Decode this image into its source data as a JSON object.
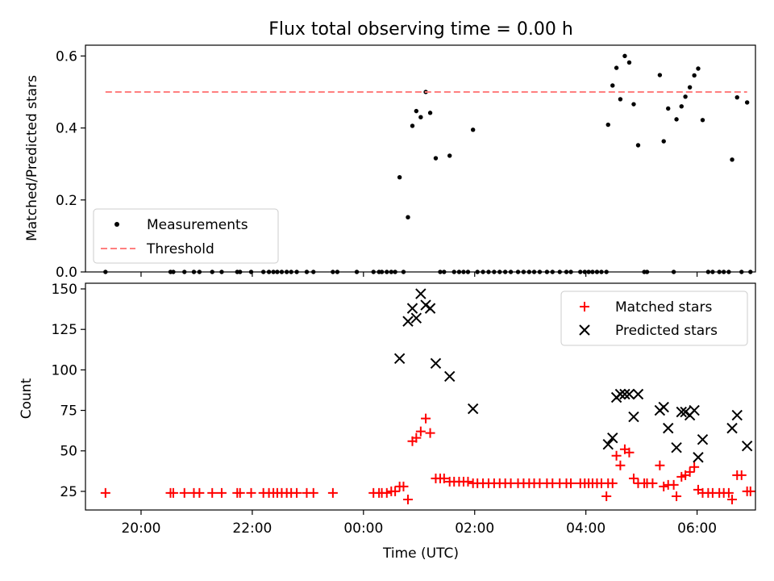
{
  "chart_data": [
    {
      "type": "scatter",
      "title": "Flux total observing time = 0.00 h",
      "ylabel": "Matched/Predicted stars",
      "xlabel": "",
      "ylim": [
        0,
        0.63
      ],
      "yticks": [
        0.0,
        0.2,
        0.4,
        0.6
      ],
      "ytick_labels": [
        "0.0",
        "0.2",
        "0.4",
        "0.6"
      ],
      "x_unit": "hours since 2000-01-01 00:00 UTC",
      "xlim": [
        19.0,
        31.05
      ],
      "legend_position": "lower-left",
      "series": [
        {
          "name": "Measurements",
          "marker": "dot",
          "color": "#000000",
          "points": [
            [
              19.36,
              0
            ],
            [
              20.53,
              0
            ],
            [
              20.58,
              0
            ],
            [
              20.78,
              0
            ],
            [
              20.95,
              0
            ],
            [
              21.05,
              0
            ],
            [
              21.28,
              0
            ],
            [
              21.45,
              0
            ],
            [
              21.73,
              0
            ],
            [
              21.78,
              0
            ],
            [
              21.98,
              0
            ],
            [
              22.2,
              0
            ],
            [
              22.3,
              0
            ],
            [
              22.38,
              0
            ],
            [
              22.45,
              0
            ],
            [
              22.53,
              0
            ],
            [
              22.62,
              0
            ],
            [
              22.7,
              0
            ],
            [
              22.8,
              0
            ],
            [
              22.98,
              0
            ],
            [
              23.1,
              0
            ],
            [
              23.45,
              0
            ],
            [
              23.53,
              0
            ],
            [
              23.88,
              0
            ],
            [
              24.18,
              0
            ],
            [
              24.28,
              0
            ],
            [
              24.33,
              0
            ],
            [
              24.42,
              0
            ],
            [
              24.5,
              0
            ],
            [
              24.57,
              0
            ],
            [
              24.65,
              0.263
            ],
            [
              24.72,
              0
            ],
            [
              24.8,
              0.152
            ],
            [
              24.88,
              0.406
            ],
            [
              24.95,
              0.447
            ],
            [
              25.03,
              0.43
            ],
            [
              25.12,
              0.5
            ],
            [
              25.2,
              0.442
            ],
            [
              25.3,
              0.316
            ],
            [
              25.38,
              0
            ],
            [
              25.45,
              0
            ],
            [
              25.55,
              0.323
            ],
            [
              25.63,
              0
            ],
            [
              25.72,
              0
            ],
            [
              25.8,
              0
            ],
            [
              25.88,
              0
            ],
            [
              25.97,
              0.395
            ],
            [
              26.05,
              0
            ],
            [
              26.15,
              0
            ],
            [
              26.25,
              0
            ],
            [
              26.35,
              0
            ],
            [
              26.45,
              0
            ],
            [
              26.55,
              0
            ],
            [
              26.65,
              0
            ],
            [
              26.78,
              0
            ],
            [
              26.88,
              0
            ],
            [
              26.98,
              0
            ],
            [
              27.07,
              0
            ],
            [
              27.17,
              0
            ],
            [
              27.3,
              0
            ],
            [
              27.4,
              0
            ],
            [
              27.53,
              0
            ],
            [
              27.65,
              0
            ],
            [
              27.73,
              0
            ],
            [
              27.9,
              0
            ],
            [
              27.98,
              0
            ],
            [
              28.05,
              0
            ],
            [
              28.12,
              0
            ],
            [
              28.2,
              0
            ],
            [
              28.28,
              0
            ],
            [
              28.37,
              0
            ],
            [
              28.4,
              0.409
            ],
            [
              28.48,
              0.518
            ],
            [
              28.55,
              0.567
            ],
            [
              28.62,
              0.48
            ],
            [
              28.7,
              0.6
            ],
            [
              28.78,
              0.582
            ],
            [
              28.86,
              0.466
            ],
            [
              28.94,
              0.352
            ],
            [
              29.05,
              0
            ],
            [
              29.1,
              0
            ],
            [
              29.33,
              0.547
            ],
            [
              29.4,
              0.363
            ],
            [
              29.48,
              0.454
            ],
            [
              29.58,
              0
            ],
            [
              29.63,
              0.424
            ],
            [
              29.72,
              0.46
            ],
            [
              29.79,
              0.487
            ],
            [
              29.87,
              0.513
            ],
            [
              29.95,
              0.546
            ],
            [
              30.02,
              0.565
            ],
            [
              30.1,
              0.422
            ],
            [
              30.2,
              0
            ],
            [
              30.28,
              0
            ],
            [
              30.4,
              0
            ],
            [
              30.48,
              0
            ],
            [
              30.57,
              0
            ],
            [
              30.63,
              0.312
            ],
            [
              30.72,
              0.485
            ],
            [
              30.8,
              0
            ],
            [
              30.9,
              0.471
            ],
            [
              30.96,
              0
            ]
          ]
        },
        {
          "name": "Threshold",
          "style": "dashed",
          "color": "#ff7f7f",
          "points": [
            [
              19.36,
              0.5
            ],
            [
              30.9,
              0.5
            ]
          ]
        }
      ]
    },
    {
      "type": "scatter",
      "title": "",
      "xlabel": "Time (UTC)",
      "ylabel": "Count",
      "ylim": [
        13.5,
        153.5
      ],
      "yticks": [
        25,
        50,
        75,
        100,
        125,
        150
      ],
      "ytick_labels": [
        "25",
        "50",
        "75",
        "100",
        "125",
        "150"
      ],
      "x_unit": "hours since 2000-01-01 00:00 UTC",
      "xlim": [
        19.0,
        31.05
      ],
      "xticks": [
        20,
        22,
        24,
        26,
        28,
        30
      ],
      "xtick_labels": [
        "20:00",
        "22:00",
        "00:00",
        "02:00",
        "04:00",
        "06:00"
      ],
      "legend_position": "upper-right",
      "series": [
        {
          "name": "Matched stars",
          "marker": "plus",
          "color": "#ff0000",
          "points": [
            [
              19.36,
              24
            ],
            [
              20.53,
              24
            ],
            [
              20.58,
              24
            ],
            [
              20.78,
              24
            ],
            [
              20.95,
              24
            ],
            [
              21.05,
              24
            ],
            [
              21.28,
              24
            ],
            [
              21.45,
              24
            ],
            [
              21.73,
              24
            ],
            [
              21.78,
              24
            ],
            [
              21.98,
              24
            ],
            [
              22.2,
              24
            ],
            [
              22.3,
              24
            ],
            [
              22.38,
              24
            ],
            [
              22.45,
              24
            ],
            [
              22.53,
              24
            ],
            [
              22.62,
              24
            ],
            [
              22.7,
              24
            ],
            [
              22.8,
              24
            ],
            [
              22.98,
              24
            ],
            [
              23.1,
              24
            ],
            [
              23.45,
              24
            ],
            [
              24.18,
              24
            ],
            [
              24.28,
              24
            ],
            [
              24.33,
              24
            ],
            [
              24.42,
              24
            ],
            [
              24.5,
              25
            ],
            [
              24.57,
              25
            ],
            [
              24.65,
              28
            ],
            [
              24.72,
              28
            ],
            [
              24.8,
              20
            ],
            [
              24.88,
              56
            ],
            [
              24.95,
              58
            ],
            [
              25.03,
              62
            ],
            [
              25.12,
              70
            ],
            [
              25.2,
              61
            ],
            [
              25.3,
              33
            ],
            [
              25.38,
              33
            ],
            [
              25.45,
              33
            ],
            [
              25.55,
              31
            ],
            [
              25.63,
              31
            ],
            [
              25.72,
              31
            ],
            [
              25.8,
              31
            ],
            [
              25.88,
              31
            ],
            [
              25.97,
              30
            ],
            [
              26.05,
              30
            ],
            [
              26.15,
              30
            ],
            [
              26.25,
              30
            ],
            [
              26.35,
              30
            ],
            [
              26.45,
              30
            ],
            [
              26.55,
              30
            ],
            [
              26.65,
              30
            ],
            [
              26.78,
              30
            ],
            [
              26.88,
              30
            ],
            [
              26.98,
              30
            ],
            [
              27.07,
              30
            ],
            [
              27.17,
              30
            ],
            [
              27.3,
              30
            ],
            [
              27.4,
              30
            ],
            [
              27.53,
              30
            ],
            [
              27.65,
              30
            ],
            [
              27.73,
              30
            ],
            [
              27.9,
              30
            ],
            [
              27.98,
              30
            ],
            [
              28.05,
              30
            ],
            [
              28.12,
              30
            ],
            [
              28.2,
              30
            ],
            [
              28.28,
              30
            ],
            [
              28.37,
              22
            ],
            [
              28.4,
              30
            ],
            [
              28.48,
              30
            ],
            [
              28.55,
              47
            ],
            [
              28.62,
              41
            ],
            [
              28.7,
              51
            ],
            [
              28.78,
              49
            ],
            [
              28.86,
              33
            ],
            [
              28.94,
              30
            ],
            [
              29.05,
              30
            ],
            [
              29.1,
              30
            ],
            [
              29.2,
              30
            ],
            [
              29.33,
              41
            ],
            [
              29.4,
              28
            ],
            [
              29.48,
              29
            ],
            [
              29.58,
              29
            ],
            [
              29.63,
              22
            ],
            [
              29.72,
              34
            ],
            [
              29.79,
              35
            ],
            [
              29.87,
              37
            ],
            [
              29.95,
              40
            ],
            [
              30.02,
              26
            ],
            [
              30.1,
              24
            ],
            [
              30.2,
              24
            ],
            [
              30.28,
              24
            ],
            [
              30.4,
              24
            ],
            [
              30.48,
              24
            ],
            [
              30.57,
              24
            ],
            [
              30.63,
              20
            ],
            [
              30.72,
              35
            ],
            [
              30.8,
              35
            ],
            [
              30.9,
              25
            ],
            [
              30.96,
              25
            ]
          ]
        },
        {
          "name": "Predicted stars",
          "marker": "x",
          "color": "#000000",
          "points": [
            [
              24.65,
              107
            ],
            [
              24.8,
              130
            ],
            [
              24.88,
              138
            ],
            [
              24.95,
              132
            ],
            [
              25.03,
              147
            ],
            [
              25.12,
              140
            ],
            [
              25.2,
              138
            ],
            [
              25.3,
              104
            ],
            [
              25.55,
              96
            ],
            [
              25.97,
              76
            ],
            [
              28.4,
              54
            ],
            [
              28.48,
              58
            ],
            [
              28.55,
              83
            ],
            [
              28.62,
              85
            ],
            [
              28.7,
              85
            ],
            [
              28.78,
              85
            ],
            [
              28.86,
              71
            ],
            [
              28.94,
              85
            ],
            [
              29.33,
              75
            ],
            [
              29.4,
              77
            ],
            [
              29.48,
              64
            ],
            [
              29.63,
              52
            ],
            [
              29.72,
              74
            ],
            [
              29.79,
              74
            ],
            [
              29.87,
              72
            ],
            [
              29.95,
              75
            ],
            [
              30.02,
              46
            ],
            [
              30.1,
              57
            ],
            [
              30.63,
              64
            ],
            [
              30.72,
              72
            ],
            [
              30.9,
              53
            ]
          ]
        }
      ]
    }
  ]
}
